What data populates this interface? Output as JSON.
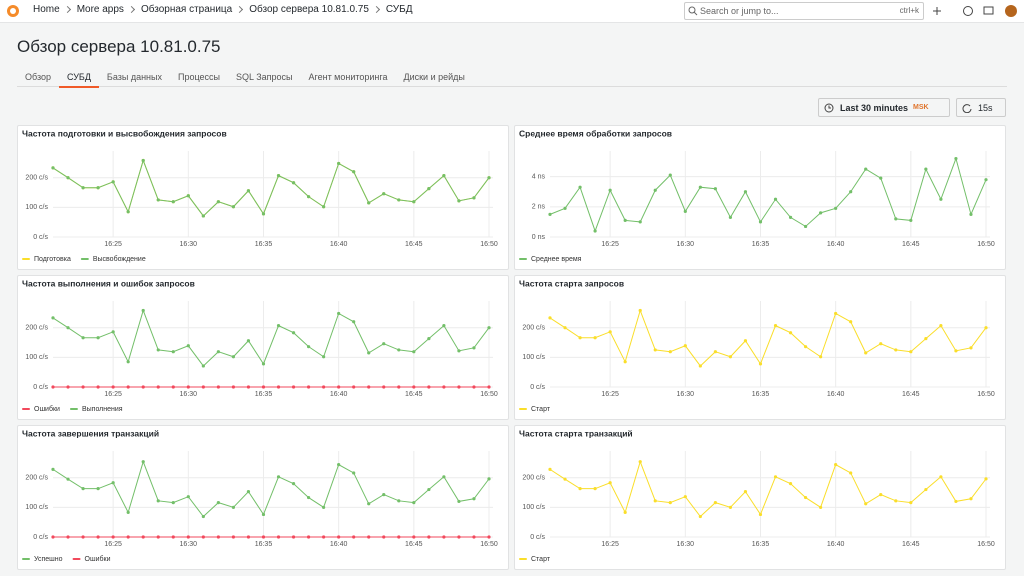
{
  "header": {
    "breadcrumbs": [
      "Home",
      "More apps",
      "Обзорная страница",
      "Обзор сервера 10.81.0.75",
      "СУБД"
    ],
    "search_placeholder": "Search or jump to...",
    "shortcut": "ctrl+k"
  },
  "page": {
    "title": "Обзор сервера 10.81.0.75",
    "tabs": [
      "Обзор",
      "СУБД",
      "Базы данных",
      "Процессы",
      "SQL Запросы",
      "Агент мониторинга",
      "Диски и рейды"
    ]
  },
  "toolbar": {
    "time_range": "Last 30 minutes",
    "timezone": "MSK",
    "refresh": "15s"
  },
  "chart_data": [
    {
      "type": "line",
      "title": "Частота подготовки и высвобождения запросов",
      "categories": [
        null,
        null,
        null,
        null,
        "16:25",
        null,
        null,
        null,
        null,
        "16:30",
        null,
        null,
        null,
        null,
        "16:35",
        null,
        null,
        null,
        null,
        "16:40",
        null,
        null,
        null,
        null,
        "16:45",
        null,
        null,
        null,
        null,
        "16:50"
      ],
      "series": [
        {
          "name": "Подготовка",
          "color": "#fade2a",
          "values": [
            233,
            200,
            166,
            166,
            186,
            85,
            258,
            125,
            119,
            139,
            71,
            119,
            102,
            156,
            78,
            207,
            183,
            136,
            102,
            248,
            220,
            115,
            146,
            125,
            119,
            163,
            207,
            122,
            132,
            200
          ]
        },
        {
          "name": "Высвобождение",
          "color": "#73bf69",
          "values": [
            233,
            200,
            166,
            166,
            186,
            85,
            258,
            125,
            119,
            139,
            71,
            119,
            102,
            156,
            78,
            207,
            183,
            136,
            102,
            248,
            220,
            115,
            146,
            125,
            119,
            163,
            207,
            122,
            132,
            200
          ]
        }
      ],
      "ylim": [
        0,
        290
      ],
      "yticks": [
        {
          "value": 0,
          "label": "0 c/s"
        },
        {
          "value": 100,
          "label": "100 c/s"
        },
        {
          "value": 200,
          "label": "200 c/s"
        }
      ],
      "grid": true,
      "legend": "bottom-left"
    },
    {
      "type": "line",
      "title": "Среднее время обработки запросов",
      "categories": [
        null,
        null,
        null,
        null,
        "16:25",
        null,
        null,
        null,
        null,
        "16:30",
        null,
        null,
        null,
        null,
        "16:35",
        null,
        null,
        null,
        null,
        "16:40",
        null,
        null,
        null,
        null,
        "16:45",
        null,
        null,
        null,
        null,
        "16:50"
      ],
      "series": [
        {
          "name": "Среднее время",
          "color": "#73bf69",
          "values": [
            1.5,
            1.9,
            3.3,
            0.4,
            3.1,
            1.1,
            1.0,
            3.1,
            4.1,
            1.7,
            3.3,
            3.2,
            1.3,
            3.0,
            1.0,
            2.5,
            1.3,
            0.7,
            1.6,
            1.9,
            3.0,
            4.5,
            3.9,
            1.2,
            1.1,
            4.5,
            2.5,
            5.2,
            1.5,
            3.8
          ]
        }
      ],
      "ylim": [
        0,
        5.7
      ],
      "yticks": [
        {
          "value": 0,
          "label": "0 ns"
        },
        {
          "value": 2,
          "label": "2 ns"
        },
        {
          "value": 4,
          "label": "4 ns"
        }
      ],
      "grid": true,
      "legend": "bottom-left"
    },
    {
      "type": "line",
      "title": "Частота выполнения и ошибок запросов",
      "categories": [
        null,
        null,
        null,
        null,
        "16:25",
        null,
        null,
        null,
        null,
        "16:30",
        null,
        null,
        null,
        null,
        "16:35",
        null,
        null,
        null,
        null,
        "16:40",
        null,
        null,
        null,
        null,
        "16:45",
        null,
        null,
        null,
        null,
        "16:50"
      ],
      "series": [
        {
          "name": "Ошибки",
          "color": "#f2495c",
          "values": [
            0,
            0,
            0,
            0,
            0,
            0,
            0,
            0,
            0,
            0,
            0,
            0,
            0,
            0,
            0,
            0,
            0,
            0,
            0,
            0,
            0,
            0,
            0,
            0,
            0,
            0,
            0,
            0,
            0,
            0
          ]
        },
        {
          "name": "Выполнения",
          "color": "#73bf69",
          "values": [
            233,
            200,
            166,
            166,
            186,
            85,
            258,
            125,
            119,
            139,
            71,
            119,
            102,
            156,
            78,
            207,
            183,
            136,
            102,
            248,
            220,
            115,
            146,
            125,
            119,
            163,
            207,
            122,
            132,
            200
          ]
        }
      ],
      "ylim": [
        0,
        290
      ],
      "yticks": [
        {
          "value": 0,
          "label": "0 c/s"
        },
        {
          "value": 100,
          "label": "100 c/s"
        },
        {
          "value": 200,
          "label": "200 c/s"
        }
      ],
      "grid": true,
      "legend": "bottom-left"
    },
    {
      "type": "line",
      "title": "Частота старта запросов",
      "categories": [
        null,
        null,
        null,
        null,
        "16:25",
        null,
        null,
        null,
        null,
        "16:30",
        null,
        null,
        null,
        null,
        "16:35",
        null,
        null,
        null,
        null,
        "16:40",
        null,
        null,
        null,
        null,
        "16:45",
        null,
        null,
        null,
        null,
        "16:50"
      ],
      "series": [
        {
          "name": "Старт",
          "color": "#fade2a",
          "values": [
            233,
            200,
            166,
            166,
            186,
            85,
            258,
            125,
            119,
            139,
            71,
            119,
            102,
            156,
            78,
            207,
            183,
            136,
            102,
            248,
            220,
            115,
            146,
            125,
            119,
            163,
            207,
            122,
            132,
            200
          ]
        }
      ],
      "ylim": [
        0,
        290
      ],
      "yticks": [
        {
          "value": 0,
          "label": "0 c/s"
        },
        {
          "value": 100,
          "label": "100 c/s"
        },
        {
          "value": 200,
          "label": "200 c/s"
        }
      ],
      "grid": true,
      "legend": "bottom-left"
    },
    {
      "type": "line",
      "title": "Частота завершения транзакций",
      "categories": [
        null,
        null,
        null,
        null,
        "16:25",
        null,
        null,
        null,
        null,
        "16:30",
        null,
        null,
        null,
        null,
        "16:35",
        null,
        null,
        null,
        null,
        "16:40",
        null,
        null,
        null,
        null,
        "16:45",
        null,
        null,
        null,
        null,
        "16:50"
      ],
      "series": [
        {
          "name": "Успешно",
          "color": "#73bf69",
          "values": [
            228,
            195,
            163,
            163,
            183,
            83,
            254,
            122,
            116,
            136,
            69,
            116,
            100,
            153,
            76,
            203,
            180,
            133,
            100,
            244,
            216,
            112,
            143,
            122,
            116,
            160,
            203,
            120,
            129,
            196
          ]
        },
        {
          "name": "Ошибки",
          "color": "#f2495c",
          "values": [
            0,
            0,
            0,
            0,
            0,
            0,
            0,
            0,
            0,
            0,
            0,
            0,
            0,
            0,
            0,
            0,
            0,
            0,
            0,
            0,
            0,
            0,
            0,
            0,
            0,
            0,
            0,
            0,
            0,
            0
          ]
        }
      ],
      "ylim": [
        0,
        290
      ],
      "yticks": [
        {
          "value": 0,
          "label": "0 c/s"
        },
        {
          "value": 100,
          "label": "100 c/s"
        },
        {
          "value": 200,
          "label": "200 c/s"
        }
      ],
      "grid": true,
      "legend": "bottom-left"
    },
    {
      "type": "line",
      "title": "Частота старта транзакций",
      "categories": [
        null,
        null,
        null,
        null,
        "16:25",
        null,
        null,
        null,
        null,
        "16:30",
        null,
        null,
        null,
        null,
        "16:35",
        null,
        null,
        null,
        null,
        "16:40",
        null,
        null,
        null,
        null,
        "16:45",
        null,
        null,
        null,
        null,
        "16:50"
      ],
      "series": [
        {
          "name": "Старт",
          "color": "#fade2a",
          "values": [
            228,
            195,
            163,
            163,
            183,
            83,
            254,
            122,
            116,
            136,
            69,
            116,
            100,
            153,
            76,
            203,
            180,
            133,
            100,
            244,
            216,
            112,
            143,
            122,
            116,
            160,
            203,
            120,
            129,
            196
          ]
        }
      ],
      "ylim": [
        0,
        290
      ],
      "yticks": [
        {
          "value": 0,
          "label": "0 c/s"
        },
        {
          "value": 100,
          "label": "100 c/s"
        },
        {
          "value": 200,
          "label": "200 c/s"
        }
      ],
      "grid": true,
      "legend": "bottom-left"
    }
  ]
}
